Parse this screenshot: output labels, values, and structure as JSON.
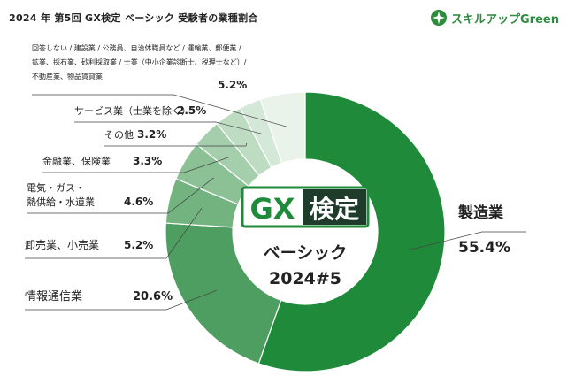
{
  "title": "2024 年 第5回 GX検定 ベーシック 受験者の業種割合",
  "logo": {
    "text": "スキルアップGreen",
    "icon": "leaf-sparkle-icon"
  },
  "badge": {
    "gx": "GX",
    "kentei": "検定",
    "level": "ベーシック",
    "session": "2024#5"
  },
  "colors": {
    "accent": "#1e8a3a",
    "badge_dark": "#1f3b2a"
  },
  "chart_data": {
    "type": "pie",
    "donut": true,
    "start_angle": "12 o'clock, clockwise",
    "slices": [
      {
        "label": "製造業",
        "value": 55.4,
        "pct": "55.4%",
        "color": "#1e8a3a"
      },
      {
        "label": "情報通信業",
        "value": 20.6,
        "pct": "20.6%",
        "color": "#4f9e61"
      },
      {
        "label": "卸売業、小売業",
        "value": 5.2,
        "pct": "5.2%",
        "color": "#72b37f"
      },
      {
        "label_lines": [
          "電気・ガス・",
          "熱供給・水道業"
        ],
        "value": 4.6,
        "pct": "4.6%",
        "color": "#8cc196"
      },
      {
        "label": "金融業、保険業",
        "value": 3.3,
        "pct": "3.3%",
        "color": "#a5cfac"
      },
      {
        "label": "その他",
        "value": 3.2,
        "pct": "3.2%",
        "color": "#bddcc2"
      },
      {
        "label": "サービス業（士業を除く）",
        "value": 2.5,
        "pct": "2.5%",
        "color": "#d3e8d6"
      },
      {
        "label_lines": [
          "回答しない / 建設業 / 公務員、自治体職員など / 運輸業、郵便業 /",
          "鉱業、採石業、砂利採取業 / 士業（中小企業診断士、税理士など）/",
          "不動産業、物品賃貸業"
        ],
        "value": 5.2,
        "pct": "5.2%",
        "color": "#e9f3ea"
      }
    ]
  }
}
